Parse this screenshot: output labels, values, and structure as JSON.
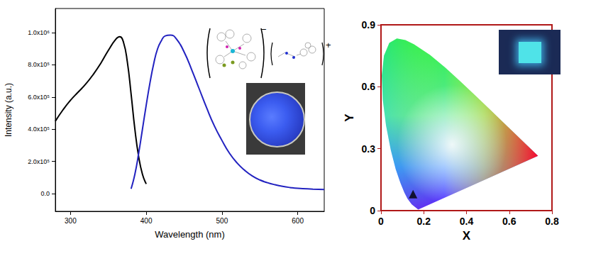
{
  "chart_data": [
    {
      "type": "line",
      "xlabel": "Wavelength (nm)",
      "ylabel": "Intensity (a.u.)",
      "xlim": [
        280,
        635
      ],
      "xticks": [
        300,
        400,
        500,
        600
      ],
      "ylim": [
        -110000,
        1150000
      ],
      "yticks": [
        {
          "value": 0,
          "label": "0.0"
        },
        {
          "value": 200000,
          "label": "2.0x10⁵"
        },
        {
          "value": 400000,
          "label": "4.0x10⁵"
        },
        {
          "value": 600000,
          "label": "6.0x10⁵"
        },
        {
          "value": 800000,
          "label": "8.0x10⁵"
        },
        {
          "value": 1000000,
          "label": "1.0x10⁶"
        }
      ],
      "grid": false,
      "annotations": [
        "−",
        "+"
      ],
      "series": [
        {
          "color": "#000000",
          "x": [
            280,
            290,
            300,
            310,
            320,
            330,
            340,
            350,
            360,
            365,
            370,
            375,
            380,
            385,
            390,
            395,
            400
          ],
          "values": [
            450000,
            520000,
            580000,
            630000,
            680000,
            740000,
            810000,
            890000,
            960000,
            975000,
            940000,
            820000,
            620000,
            400000,
            230000,
            120000,
            60000
          ]
        },
        {
          "color": "#2222c0",
          "x": [
            380,
            385,
            390,
            395,
            400,
            405,
            410,
            415,
            420,
            425,
            432,
            440,
            450,
            460,
            470,
            480,
            490,
            500,
            510,
            520,
            530,
            540,
            550,
            560,
            570,
            580,
            590,
            600,
            620,
            635
          ],
          "values": [
            30000,
            120000,
            250000,
            400000,
            550000,
            690000,
            810000,
            900000,
            950000,
            980000,
            985000,
            960000,
            880000,
            770000,
            650000,
            530000,
            420000,
            330000,
            250000,
            190000,
            145000,
            110000,
            85000,
            68000,
            55000,
            45000,
            38000,
            33000,
            28000,
            25000
          ]
        }
      ]
    },
    {
      "type": "scatter",
      "xlabel": "X",
      "ylabel": "Y",
      "xlim": [
        0,
        0.8
      ],
      "xticks": [
        0,
        0.2,
        0.4,
        0.6,
        0.8
      ],
      "ylim": [
        0,
        0.9
      ],
      "yticks": [
        0,
        0.3,
        0.6,
        0.9
      ],
      "grid": false,
      "series": [
        {
          "type": "area",
          "x": [
            0.1741,
            0.144,
            0.1241,
            0.1096,
            0.0913,
            0.0687,
            0.0454,
            0.0235,
            0.0082,
            0.0039,
            0.0139,
            0.0389,
            0.0743,
            0.1142,
            0.1547,
            0.2296,
            0.3016,
            0.3731,
            0.4441,
            0.5125,
            0.5752,
            0.627,
            0.6915,
            0.719,
            0.7347
          ],
          "values": [
            0.005,
            0.0297,
            0.0578,
            0.0868,
            0.1327,
            0.2007,
            0.295,
            0.4127,
            0.5384,
            0.6548,
            0.7502,
            0.812,
            0.8338,
            0.8262,
            0.8059,
            0.7543,
            0.6923,
            0.6245,
            0.5547,
            0.4866,
            0.4242,
            0.3725,
            0.3083,
            0.2809,
            0.2653
          ]
        },
        {
          "type": "scatter",
          "marker": "triangle",
          "color": "#000000",
          "x": [
            0.15
          ],
          "values": [
            0.08
          ]
        }
      ]
    }
  ]
}
